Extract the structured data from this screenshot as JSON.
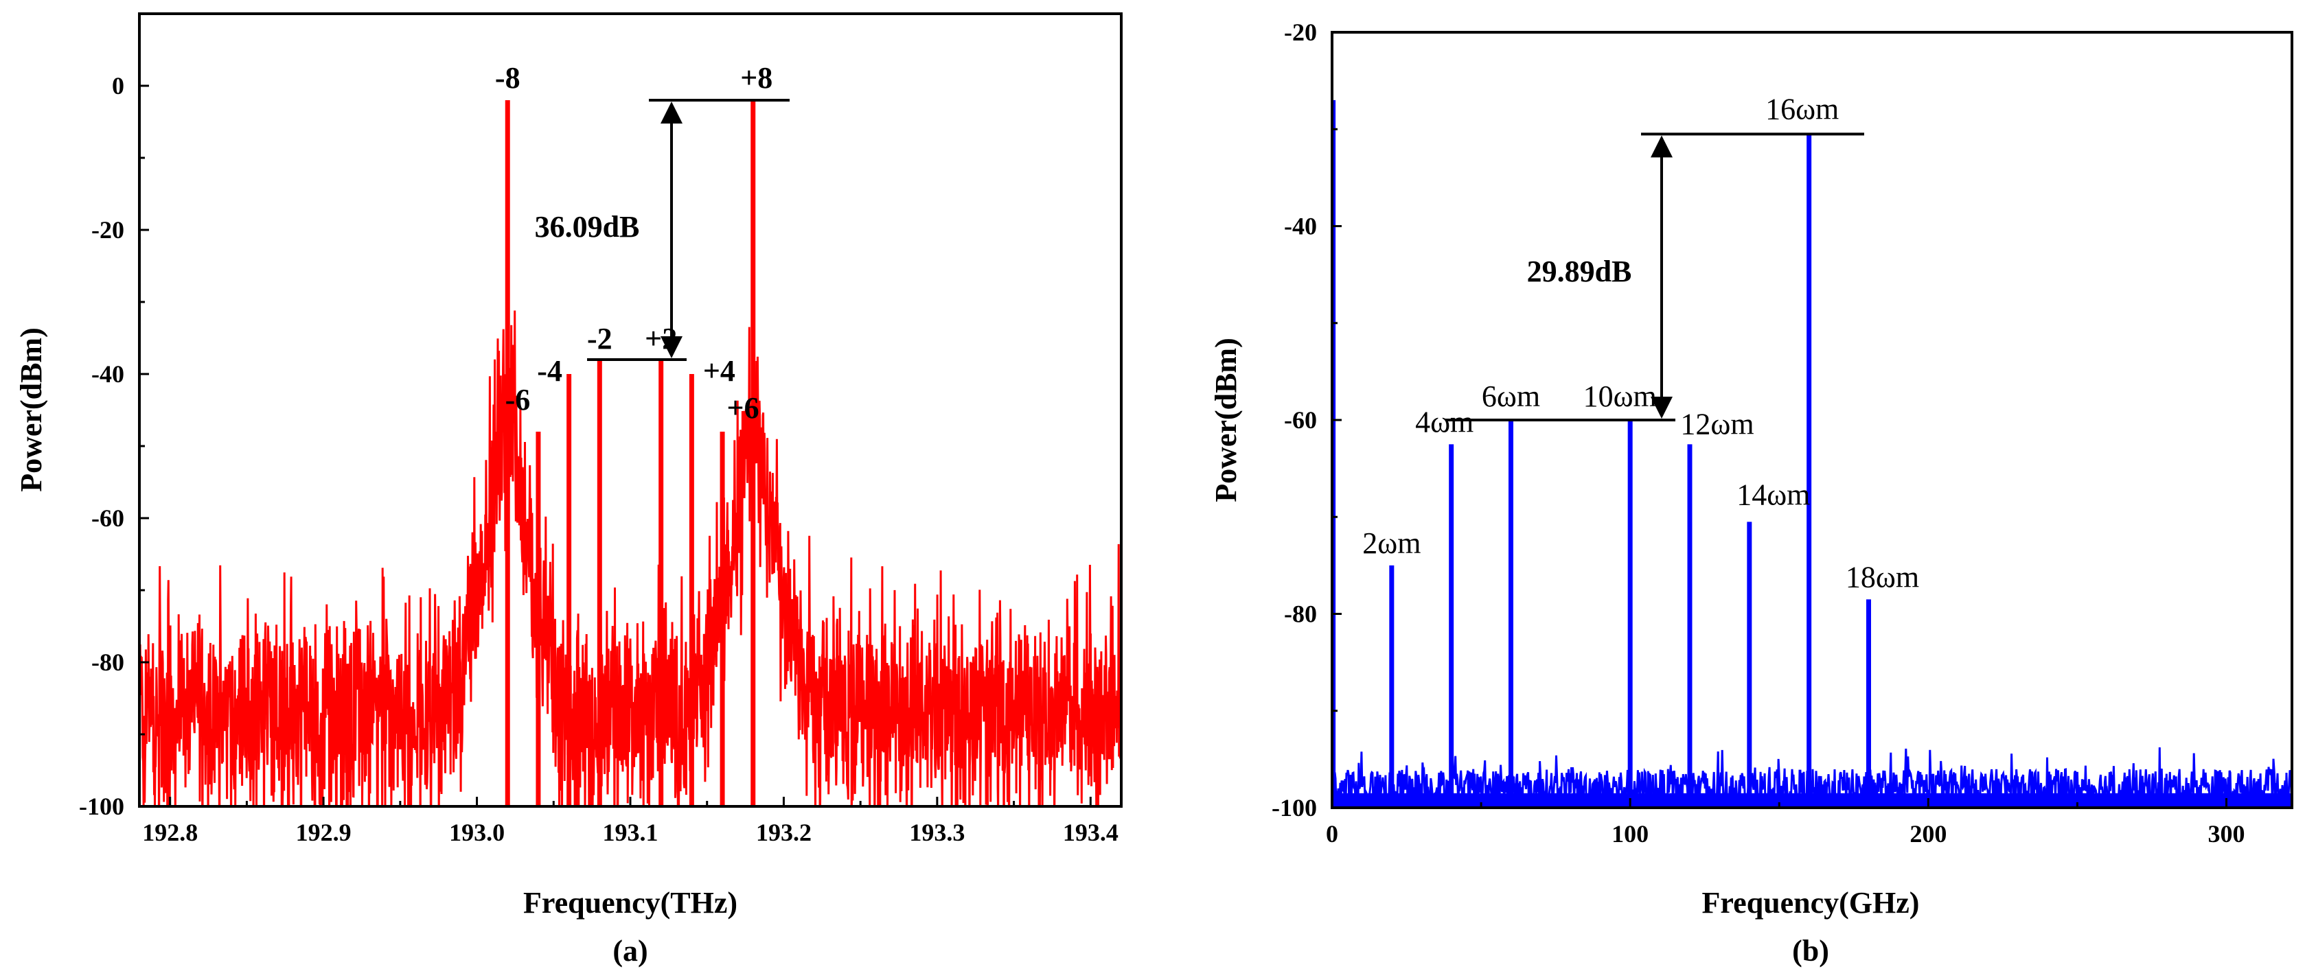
{
  "chart_data": [
    {
      "id": "a",
      "type": "line",
      "panel_label": "(a)",
      "xlabel": "Frequency(THz)",
      "ylabel": "Power(dBm)",
      "xlim": [
        192.78,
        193.42
      ],
      "ylim": [
        -100,
        10
      ],
      "xticks": [
        192.8,
        192.9,
        193.0,
        193.1,
        193.2,
        193.3,
        193.4
      ],
      "xtick_labels": [
        "192.8",
        "192.9",
        "193.0",
        "193.1",
        "193.2",
        "193.3",
        "193.4"
      ],
      "yticks": [
        0,
        -20,
        -40,
        -60,
        -80,
        -100
      ],
      "ytick_labels": [
        "0",
        "-20",
        "-40",
        "-60",
        "-80",
        "-100"
      ],
      "color": "#ff0000",
      "noise_floor": -86,
      "peaks": [
        {
          "x": 193.02,
          "y": -2,
          "label": "-8"
        },
        {
          "x": 193.04,
          "y": -48,
          "label": "-6"
        },
        {
          "x": 193.06,
          "y": -40,
          "label": "-4"
        },
        {
          "x": 193.08,
          "y": -38,
          "label": "-2"
        },
        {
          "x": 193.12,
          "y": -38,
          "label": "+2"
        },
        {
          "x": 193.14,
          "y": -40,
          "label": "+4"
        },
        {
          "x": 193.16,
          "y": -48,
          "label": "+6"
        },
        {
          "x": 193.18,
          "y": -2,
          "label": "+8"
        }
      ],
      "annotation": {
        "text": "36.09dB",
        "from_y": -2,
        "to_y": -38
      }
    },
    {
      "id": "b",
      "type": "line",
      "panel_label": "(b)",
      "xlabel": "Frequency(GHz)",
      "ylabel": "Power(dBm)",
      "xlim": [
        0,
        322
      ],
      "ylim": [
        -100,
        -20
      ],
      "xticks": [
        0,
        100,
        200,
        300
      ],
      "xtick_labels": [
        "0",
        "100",
        "200",
        "300"
      ],
      "yticks": [
        -20,
        -40,
        -60,
        -80,
        -100
      ],
      "ytick_labels": [
        "-20",
        "-40",
        "-60",
        "-80",
        "-100"
      ],
      "color": "#0000ff",
      "noise_floor": -96,
      "peaks": [
        {
          "x": 20,
          "y": -75,
          "label": "2ωm"
        },
        {
          "x": 40,
          "y": -62.5,
          "label": "4ωm"
        },
        {
          "x": 60,
          "y": -60,
          "label": "6ωm"
        },
        {
          "x": 100,
          "y": -60,
          "label": "10ωm"
        },
        {
          "x": 120,
          "y": -62.5,
          "label": "12ωm"
        },
        {
          "x": 140,
          "y": -70.5,
          "label": "14ωm"
        },
        {
          "x": 160,
          "y": -30.5,
          "label": "16ωm"
        },
        {
          "x": 180,
          "y": -78.5,
          "label": "18ωm"
        }
      ],
      "annotation": {
        "text": "29.89dB",
        "from_y": -30.5,
        "to_y": -60
      }
    }
  ]
}
